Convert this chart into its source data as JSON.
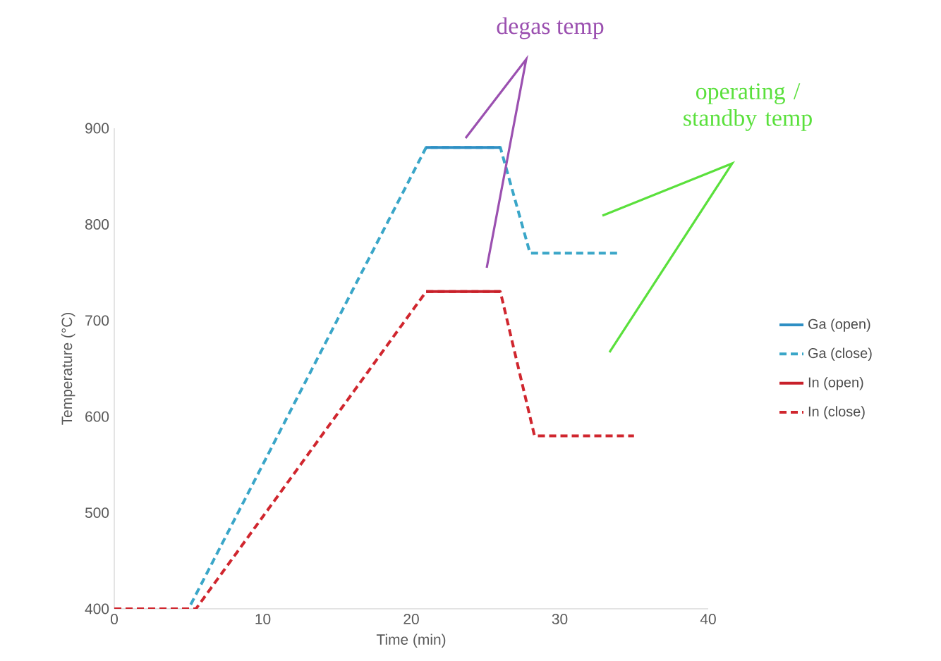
{
  "chart_data": {
    "type": "line",
    "xlabel": "Time (min)",
    "ylabel": "Temperature (°C)",
    "xlim": [
      0,
      40
    ],
    "ylim": [
      400,
      900
    ],
    "xticks": [
      0,
      10,
      20,
      30,
      40
    ],
    "yticks": [
      400,
      500,
      600,
      700,
      800,
      900
    ],
    "legend": "right",
    "grid": false,
    "series": [
      {
        "name": "Ga (open)",
        "color": "#2e8fc4",
        "line_style": "solid",
        "x": [
          21,
          26
        ],
        "values": [
          880,
          880
        ]
      },
      {
        "name": "Ga (close)",
        "color": "#3aa6c8",
        "line_style": "dashed",
        "x": [
          0,
          5,
          21,
          26,
          28,
          34
        ],
        "values": [
          400,
          400,
          880,
          880,
          770,
          770
        ]
      },
      {
        "name": "In (open)",
        "color": "#c8202a",
        "line_style": "solid",
        "x": [
          21,
          26
        ],
        "values": [
          730,
          730
        ]
      },
      {
        "name": "In (close)",
        "color": "#d0262e",
        "line_style": "dashed",
        "x": [
          0,
          5.5,
          21,
          26,
          28.3,
          35
        ],
        "values": [
          400,
          400,
          730,
          730,
          580,
          580
        ]
      }
    ],
    "annotations": [
      "degas temp",
      "operating / standby temp"
    ]
  }
}
